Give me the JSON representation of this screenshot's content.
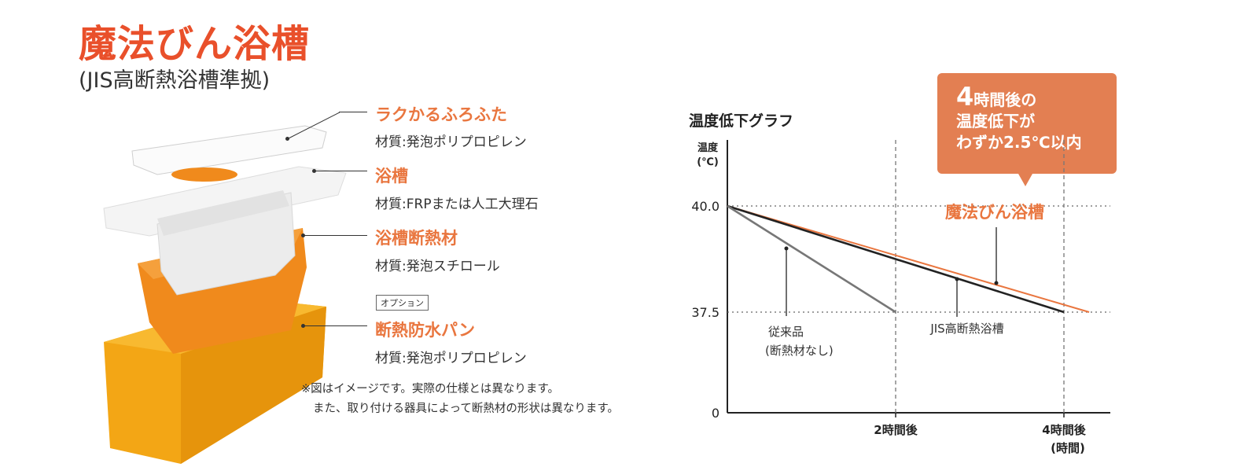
{
  "brand": {
    "title": "魔法びん浴槽",
    "subtitle": "(JIS高断熱浴槽準拠)"
  },
  "parts": [
    {
      "name": "ラクかるふろふた",
      "material": "材質:発泡ポリプロピレン"
    },
    {
      "name": "浴槽",
      "material": "材質:FRPまたは人工大理石"
    },
    {
      "name": "浴槽断熱材",
      "material": "材質:発泡スチロール"
    },
    {
      "name": "断熱防水パン",
      "material": "材質:発泡ポリプロピレン",
      "tag": "オプション"
    }
  ],
  "notes": {
    "line1": "※図はイメージです。実際の仕様とは異なります。",
    "line2": "また、取り付ける器具によって断熱材の形状は異なります。"
  },
  "callout": {
    "num": "4",
    "line1": "時間後の",
    "line2": "温度低下が",
    "line3": "わずか2.5℃以内"
  },
  "chart_data": {
    "type": "line",
    "title": "温度低下グラフ",
    "ylabel": "温度",
    "yunit": "(℃)",
    "xunit": "(時間)",
    "y_ticks": [
      {
        "value": 0,
        "label": "0"
      },
      {
        "value": 37.5,
        "label": "37.5"
      },
      {
        "value": 40.0,
        "label": "40.0"
      }
    ],
    "x_ticks": [
      {
        "value": 2,
        "label": "2時間後"
      },
      {
        "value": 4,
        "label": "4時間後"
      }
    ],
    "y_axis_note": "broken axis between 0 and 37.5",
    "series": [
      {
        "name": "魔法びん浴槽",
        "color": "#e9763f",
        "points": [
          [
            0,
            40.0
          ],
          [
            4.3,
            37.5
          ]
        ]
      },
      {
        "name": "JIS高断熱浴槽",
        "color": "#222222",
        "points": [
          [
            0,
            40.0
          ],
          [
            4.0,
            37.5
          ]
        ]
      },
      {
        "name": "従来品\n(断熱材なし)",
        "label1": "従来品",
        "label2": "(断熱材なし)",
        "color": "#777777",
        "points": [
          [
            0,
            40.0
          ],
          [
            2.0,
            37.5
          ]
        ]
      }
    ]
  }
}
